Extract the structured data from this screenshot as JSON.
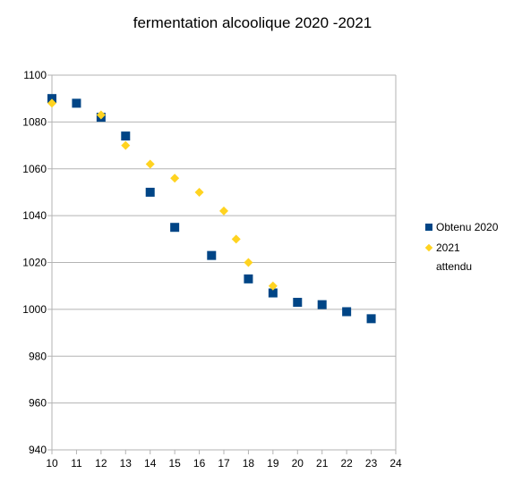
{
  "chart_data": {
    "type": "scatter",
    "title": "fermentation alcoolique 2020 -2021",
    "xlabel": "",
    "ylabel": "",
    "xlim": [
      10,
      24
    ],
    "ylim": [
      940,
      1100
    ],
    "x_ticks": [
      "10",
      "11",
      "12",
      "13",
      "14",
      "15",
      "16",
      "17",
      "18",
      "19",
      "20",
      "21",
      "22",
      "23",
      "24"
    ],
    "y_ticks": [
      "940",
      "960",
      "980",
      "1000",
      "1020",
      "1040",
      "1060",
      "1080",
      "1100"
    ],
    "grid": "horizontal",
    "legend_position": "right",
    "series": [
      {
        "name": "Obtenu 2020",
        "marker": "square",
        "color": "#004586",
        "points": [
          [
            10,
            1090
          ],
          [
            11,
            1088
          ],
          [
            12,
            1082
          ],
          [
            13,
            1074
          ],
          [
            14,
            1050
          ],
          [
            15,
            1035
          ],
          [
            16.5,
            1023
          ],
          [
            18,
            1013
          ],
          [
            19,
            1007
          ],
          [
            20,
            1003
          ],
          [
            21,
            1002
          ],
          [
            22,
            999
          ],
          [
            23,
            996
          ]
        ]
      },
      {
        "name": "2021\nattendu",
        "marker": "diamond",
        "color": "#ffd320",
        "points": [
          [
            10,
            1088
          ],
          [
            12,
            1083
          ],
          [
            13,
            1070
          ],
          [
            14,
            1062
          ],
          [
            15,
            1056
          ],
          [
            16,
            1050
          ],
          [
            17,
            1042
          ],
          [
            17.5,
            1030
          ],
          [
            18,
            1020
          ],
          [
            19,
            1010
          ]
        ]
      }
    ]
  }
}
